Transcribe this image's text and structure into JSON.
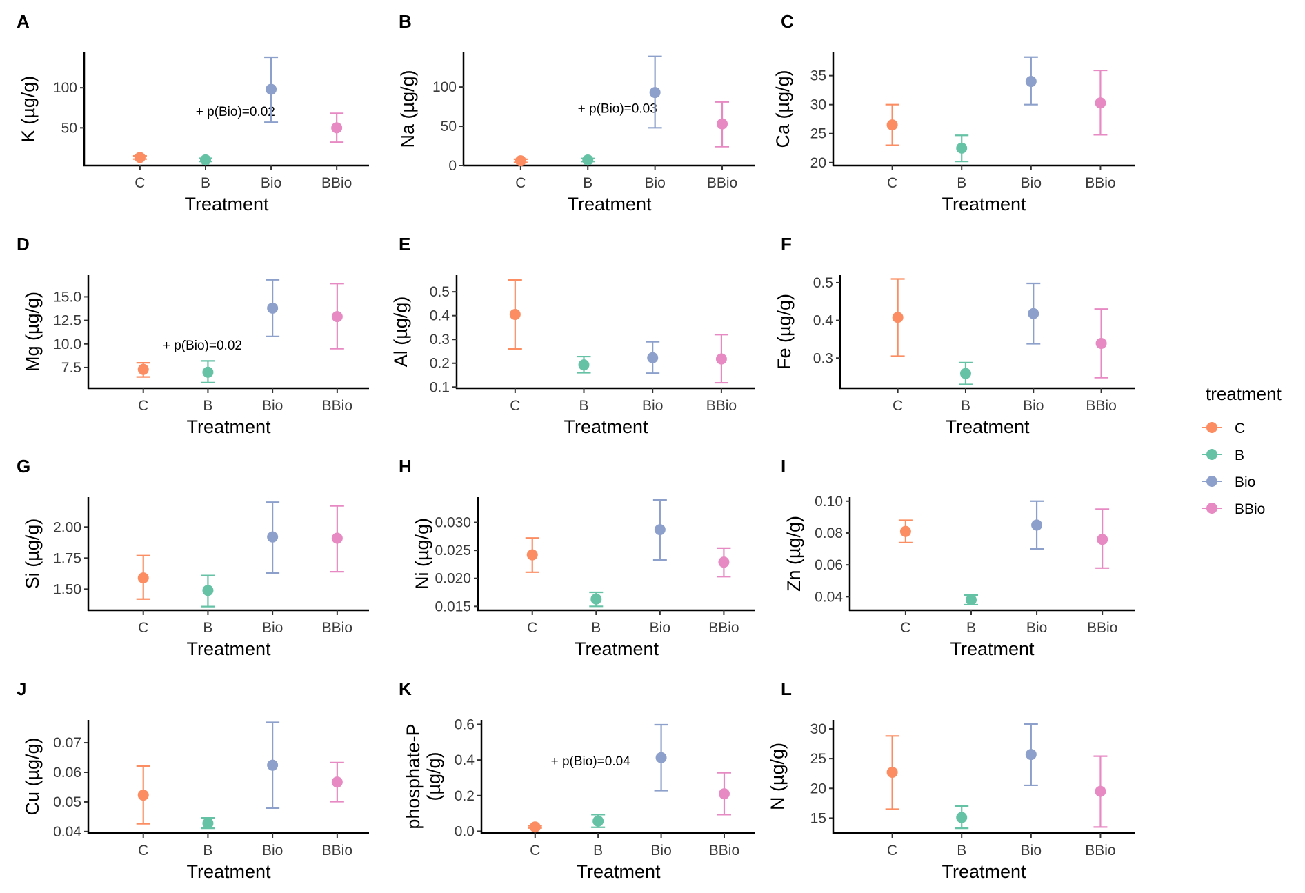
{
  "figure": {
    "legend": {
      "title": "treatment",
      "items": [
        {
          "label": "C",
          "color": "#FC8D62"
        },
        {
          "label": "B",
          "color": "#66C2A5"
        },
        {
          "label": "Bio",
          "color": "#8DA0CB"
        },
        {
          "label": "BBio",
          "color": "#E78AC3"
        }
      ]
    }
  },
  "chart_data": [
    {
      "panel": "A",
      "type": "scatter",
      "subtype": "pointrange",
      "xlabel": "Treatment",
      "ylabel": "K (µg/g)",
      "categories": [
        "C",
        "B",
        "Bio",
        "BBio"
      ],
      "mean": [
        13,
        10,
        98,
        50
      ],
      "lower": [
        11,
        8,
        57,
        32
      ],
      "upper": [
        15,
        12,
        138,
        68
      ],
      "ylim": [
        3,
        144
      ],
      "yticks": [
        50,
        100
      ],
      "ytick_labels": [
        "50",
        "100"
      ],
      "annotation": "+ p(Bio)=0.02",
      "annotation_pos": [
        1.85,
        65
      ]
    },
    {
      "panel": "B",
      "type": "scatter",
      "subtype": "pointrange",
      "xlabel": "Treatment",
      "ylabel": "Na (µg/g)",
      "categories": [
        "C",
        "B",
        "Bio",
        "BBio"
      ],
      "mean": [
        6,
        7,
        93,
        53
      ],
      "lower": [
        4,
        5,
        48,
        24
      ],
      "upper": [
        8,
        9,
        139,
        81
      ],
      "ylim": [
        0,
        144
      ],
      "yticks": [
        0,
        50,
        100
      ],
      "ytick_labels": [
        "0",
        "50",
        "100"
      ],
      "annotation": "+ p(Bio)=0.03",
      "annotation_pos": [
        1.85,
        67
      ]
    },
    {
      "panel": "C",
      "type": "scatter",
      "subtype": "pointrange",
      "xlabel": "Treatment",
      "ylabel": "Ca (µg/g)",
      "categories": [
        "C",
        "B",
        "Bio",
        "BBio"
      ],
      "mean": [
        26.5,
        22.5,
        34.0,
        30.3
      ],
      "lower": [
        23.0,
        20.2,
        30.0,
        24.8
      ],
      "upper": [
        30.0,
        24.7,
        38.2,
        35.9
      ],
      "ylim": [
        19.5,
        39
      ],
      "yticks": [
        20,
        25,
        30,
        35
      ],
      "ytick_labels": [
        "20",
        "25",
        "30",
        "35"
      ]
    },
    {
      "panel": "D",
      "type": "scatter",
      "subtype": "pointrange",
      "xlabel": "Treatment",
      "ylabel": "Mg (µg/g)",
      "categories": [
        "C",
        "B",
        "Bio",
        "BBio"
      ],
      "mean": [
        7.3,
        7.0,
        13.8,
        12.9
      ],
      "lower": [
        6.5,
        5.9,
        10.8,
        9.5
      ],
      "upper": [
        8.0,
        8.2,
        16.8,
        16.4
      ],
      "ylim": [
        5.3,
        17.3
      ],
      "yticks": [
        7.5,
        10.0,
        12.5,
        15.0
      ],
      "ytick_labels": [
        "7.5",
        "10.0",
        "12.5",
        "15.0"
      ],
      "annotation": "+ p(Bio)=0.02",
      "annotation_pos": [
        1.3,
        9.4
      ]
    },
    {
      "panel": "E",
      "type": "scatter",
      "subtype": "pointrange",
      "xlabel": "Treatment",
      "ylabel": "Al (µg/g)",
      "categories": [
        "C",
        "B",
        "Bio",
        "BBio"
      ],
      "mean": [
        0.405,
        0.193,
        0.223,
        0.218
      ],
      "lower": [
        0.26,
        0.16,
        0.158,
        0.118
      ],
      "upper": [
        0.55,
        0.228,
        0.29,
        0.32
      ],
      "ylim": [
        0.095,
        0.57
      ],
      "yticks": [
        0.1,
        0.2,
        0.3,
        0.4,
        0.5
      ],
      "ytick_labels": [
        "0.1",
        "0.2",
        "0.3",
        "0.4",
        "0.5"
      ]
    },
    {
      "panel": "F",
      "type": "scatter",
      "subtype": "pointrange",
      "xlabel": "Treatment",
      "ylabel": "Fe (µg/g)",
      "categories": [
        "C",
        "B",
        "Bio",
        "BBio"
      ],
      "mean": [
        0.408,
        0.259,
        0.418,
        0.339
      ],
      "lower": [
        0.305,
        0.23,
        0.338,
        0.248
      ],
      "upper": [
        0.51,
        0.288,
        0.498,
        0.43
      ],
      "ylim": [
        0.22,
        0.52
      ],
      "yticks": [
        0.3,
        0.4,
        0.5
      ],
      "ytick_labels": [
        "0.3",
        "0.4",
        "0.5"
      ]
    },
    {
      "panel": "G",
      "type": "scatter",
      "subtype": "pointrange",
      "xlabel": "Treatment",
      "ylabel": "Si (µg/g)",
      "categories": [
        "C",
        "B",
        "Bio",
        "BBio"
      ],
      "mean": [
        1.59,
        1.49,
        1.92,
        1.91
      ],
      "lower": [
        1.42,
        1.36,
        1.63,
        1.64
      ],
      "upper": [
        1.77,
        1.61,
        2.2,
        2.17
      ],
      "ylim": [
        1.33,
        2.24
      ],
      "yticks": [
        1.5,
        1.75,
        2.0
      ],
      "ytick_labels": [
        "1.50",
        "1.75",
        "2.00"
      ]
    },
    {
      "panel": "H",
      "type": "scatter",
      "subtype": "pointrange",
      "xlabel": "Treatment",
      "ylabel": "Ni (µg/g)",
      "categories": [
        "C",
        "B",
        "Bio",
        "BBio"
      ],
      "mean": [
        0.0242,
        0.0163,
        0.0287,
        0.0229
      ],
      "lower": [
        0.0211,
        0.015,
        0.0233,
        0.0203
      ],
      "upper": [
        0.0272,
        0.0175,
        0.034,
        0.0254
      ],
      "ylim": [
        0.0143,
        0.0345
      ],
      "yticks": [
        0.015,
        0.02,
        0.025,
        0.03
      ],
      "ytick_labels": [
        "0.015",
        "0.020",
        "0.025",
        "0.030"
      ]
    },
    {
      "panel": "I",
      "type": "scatter",
      "subtype": "pointrange",
      "xlabel": "Treatment",
      "ylabel": "Zn (µg/g)",
      "categories": [
        "C",
        "B",
        "Bio",
        "BBio"
      ],
      "mean": [
        0.081,
        0.038,
        0.085,
        0.076
      ],
      "lower": [
        0.074,
        0.035,
        0.07,
        0.058
      ],
      "upper": [
        0.088,
        0.041,
        0.1,
        0.095
      ],
      "ylim": [
        0.0315,
        0.1025
      ],
      "yticks": [
        0.04,
        0.06,
        0.08,
        0.1
      ],
      "ytick_labels": [
        "0.04",
        "0.06",
        "0.08",
        "0.10"
      ]
    },
    {
      "panel": "J",
      "type": "scatter",
      "subtype": "pointrange",
      "xlabel": "Treatment",
      "ylabel": "Cu (µg/g)",
      "categories": [
        "C",
        "B",
        "Bio",
        "BBio"
      ],
      "mean": [
        0.0523,
        0.0428,
        0.0624,
        0.0567
      ],
      "lower": [
        0.0426,
        0.0411,
        0.0479,
        0.0501
      ],
      "upper": [
        0.0621,
        0.0446,
        0.0769,
        0.0633
      ],
      "ylim": [
        0.0395,
        0.0777
      ],
      "yticks": [
        0.04,
        0.05,
        0.06,
        0.07
      ],
      "ytick_labels": [
        "0.04",
        "0.05",
        "0.06",
        "0.07"
      ]
    },
    {
      "panel": "K",
      "type": "scatter",
      "subtype": "pointrange",
      "xlabel": "Treatment",
      "ylabel": "phosphate-P\n(µg/g)",
      "categories": [
        "C",
        "B",
        "Bio",
        "BBio"
      ],
      "mean": [
        0.024,
        0.057,
        0.413,
        0.21
      ],
      "lower": [
        0.018,
        0.022,
        0.228,
        0.093
      ],
      "upper": [
        0.03,
        0.093,
        0.598,
        0.328
      ],
      "ylim": [
        -0.01,
        0.625
      ],
      "yticks": [
        0.0,
        0.2,
        0.4,
        0.6
      ],
      "ytick_labels": [
        "0.0",
        "0.2",
        "0.4",
        "0.6"
      ],
      "annotation": "+ p(Bio)=0.04",
      "annotation_pos": [
        1.25,
        0.37
      ]
    },
    {
      "panel": "L",
      "type": "scatter",
      "subtype": "pointrange",
      "xlabel": "Treatment",
      "ylabel": "N (µg/g)",
      "categories": [
        "C",
        "B",
        "Bio",
        "BBio"
      ],
      "mean": [
        22.7,
        15.1,
        25.7,
        19.5
      ],
      "lower": [
        16.5,
        13.3,
        20.5,
        13.5
      ],
      "upper": [
        28.8,
        17.0,
        30.8,
        25.4
      ],
      "ylim": [
        12.5,
        31.5
      ],
      "yticks": [
        15,
        20,
        25,
        30
      ],
      "ytick_labels": [
        "15",
        "20",
        "25",
        "30"
      ]
    }
  ]
}
